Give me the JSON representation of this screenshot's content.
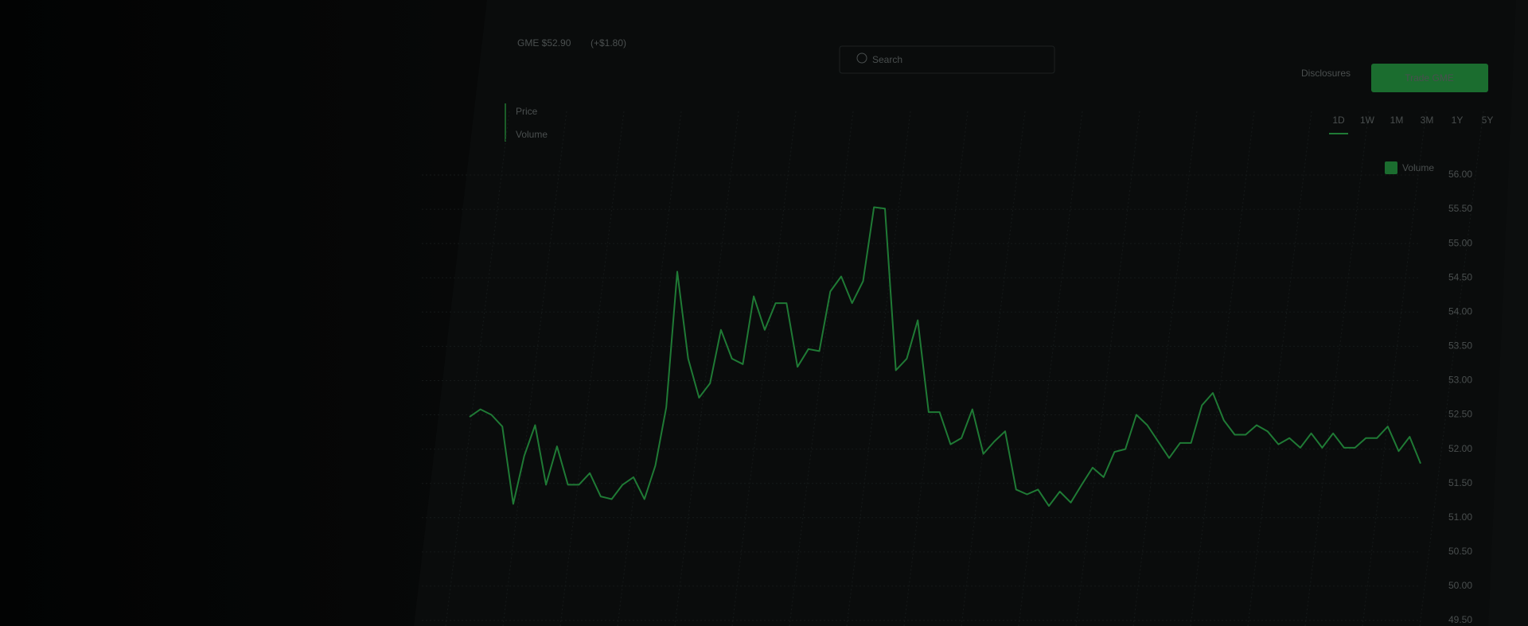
{
  "ui": {
    "ticker": "GME $52.90",
    "change": "(+$1.80)",
    "search": "Search",
    "disclosures": "Disclosures",
    "trade": "Trade GME",
    "ranges": [
      "1D",
      "1W",
      "1M",
      "3M",
      "1Y",
      "5Y"
    ],
    "volume_toggle": "Volume",
    "legend": [
      "Price",
      "Volume"
    ]
  },
  "chart_data": {
    "type": "line",
    "color": "#1f7a35",
    "values": [
      52.47,
      52.58,
      52.5,
      52.33,
      51.2,
      51.9,
      52.35,
      51.48,
      52.04,
      51.48,
      51.48,
      51.65,
      51.31,
      51.27,
      51.48,
      51.59,
      51.27,
      51.76,
      52.61,
      54.59,
      53.32,
      52.75,
      52.96,
      53.74,
      53.32,
      53.24,
      54.23,
      53.74,
      54.13,
      54.13,
      53.2,
      53.46,
      53.43,
      54.3,
      54.52,
      54.13,
      54.45,
      55.53,
      55.51,
      53.15,
      53.32,
      53.88,
      52.54,
      52.54,
      52.07,
      52.16,
      52.58,
      51.93,
      52.11,
      52.26,
      51.41,
      51.34,
      51.41,
      51.17,
      51.38,
      51.22,
      51.48,
      51.73,
      51.59,
      51.96,
      52.0,
      52.5,
      52.35,
      52.11,
      51.87,
      52.09,
      52.09,
      52.64,
      52.82,
      52.42,
      52.21,
      52.21,
      52.35,
      52.26,
      52.07,
      52.16,
      52.02,
      52.23,
      52.02,
      52.23,
      52.02,
      52.02,
      52.16,
      52.16,
      52.33,
      51.97,
      52.18,
      51.79
    ],
    "ylim": [
      49.5,
      56
    ],
    "yticks": [
      {
        "value": 56,
        "label": "56.00"
      },
      {
        "value": 55.5,
        "label": "55.50"
      },
      {
        "value": 55,
        "label": "55.00"
      },
      {
        "value": 54.5,
        "label": "54.50"
      },
      {
        "value": 54,
        "label": "54.00"
      },
      {
        "value": 53.5,
        "label": "53.50"
      },
      {
        "value": 53,
        "label": "53.00"
      },
      {
        "value": 52.5,
        "label": "52.50"
      },
      {
        "value": 52,
        "label": "52.00"
      },
      {
        "value": 51.5,
        "label": "51.50"
      },
      {
        "value": 51,
        "label": "51.00"
      },
      {
        "value": 50.5,
        "label": "50.50"
      },
      {
        "value": 50,
        "label": "50.00"
      },
      {
        "value": 49.5,
        "label": "49.50"
      }
    ],
    "grid": true
  }
}
